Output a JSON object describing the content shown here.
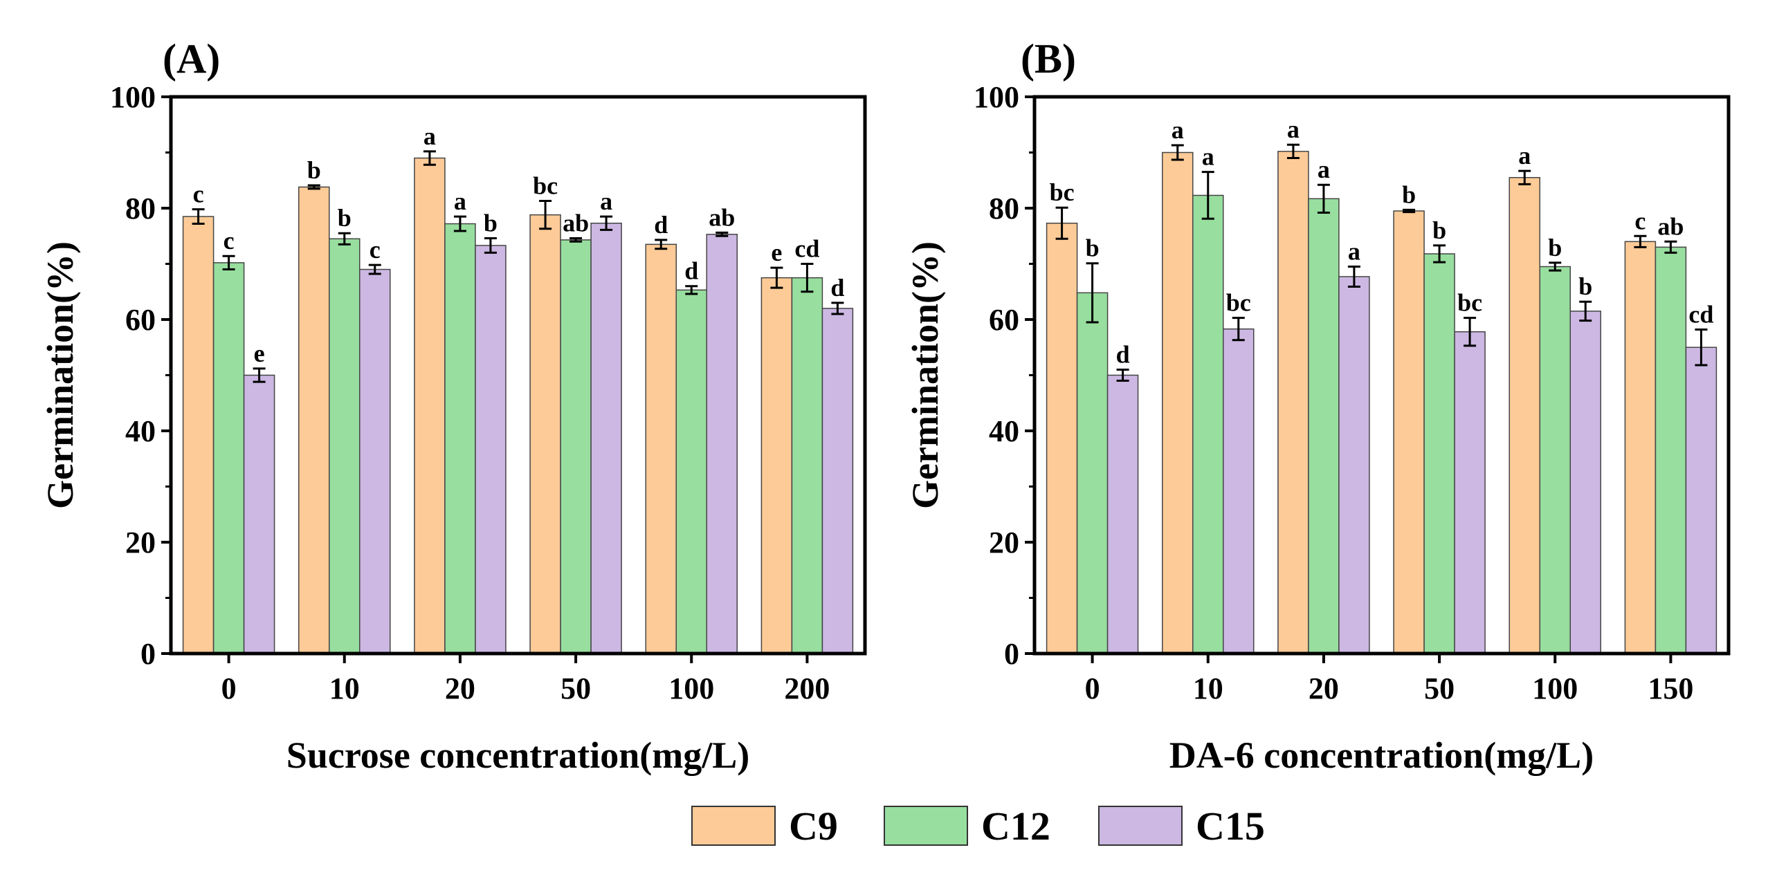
{
  "colors": {
    "C9": "#FDCB97",
    "C12": "#98DE9F",
    "C15": "#CCB8E3"
  },
  "legend": [
    {
      "name": "C9",
      "color": "#FDCB97"
    },
    {
      "name": "C12",
      "color": "#98DE9F"
    },
    {
      "name": "C15",
      "color": "#CCB8E3"
    }
  ],
  "chart_data": [
    {
      "panel_label": "(A)",
      "type": "bar",
      "categories": [
        "0",
        "10",
        "20",
        "50",
        "100",
        "200"
      ],
      "xlabel": "Sucrose concentration(mg/L)",
      "ylabel": "Germination(%)",
      "ylim": [
        0,
        100
      ],
      "yticks": [
        "0",
        "20",
        "40",
        "60",
        "80",
        "100"
      ],
      "series": [
        {
          "name": "C9",
          "values": [
            78.5,
            83.8,
            89.0,
            78.8,
            73.5,
            67.5
          ],
          "errors": [
            1.3,
            0.3,
            1.2,
            2.5,
            0.8,
            1.8
          ],
          "labels": [
            "c",
            "b",
            "a",
            "bc",
            "d",
            "e"
          ]
        },
        {
          "name": "C12",
          "values": [
            70.2,
            74.5,
            77.2,
            74.3,
            65.3,
            67.5
          ],
          "errors": [
            1.2,
            1.0,
            1.3,
            0.3,
            0.7,
            2.5
          ],
          "labels": [
            "c",
            "b",
            "a",
            "ab",
            "d",
            "cd"
          ]
        },
        {
          "name": "C15",
          "values": [
            50.0,
            69.0,
            73.3,
            77.3,
            75.3,
            62.0
          ],
          "errors": [
            1.2,
            0.8,
            1.3,
            1.2,
            0.3,
            1.0
          ],
          "labels": [
            "e",
            "c",
            "b",
            "a",
            "ab",
            "d"
          ]
        }
      ]
    },
    {
      "panel_label": "(B)",
      "type": "bar",
      "categories": [
        "0",
        "10",
        "20",
        "50",
        "100",
        "150"
      ],
      "xlabel": "DA-6 concentration(mg/L)",
      "ylabel": "Germination(%)",
      "ylim": [
        0,
        100
      ],
      "yticks": [
        "0",
        "20",
        "40",
        "60",
        "80",
        "100"
      ],
      "series": [
        {
          "name": "C9",
          "values": [
            77.3,
            90.0,
            90.2,
            79.5,
            85.5,
            74.0
          ],
          "errors": [
            2.8,
            1.3,
            1.2,
            0.2,
            1.2,
            1.0
          ],
          "labels": [
            "bc",
            "a",
            "a",
            "b",
            "a",
            "c"
          ]
        },
        {
          "name": "C12",
          "values": [
            64.8,
            82.3,
            81.7,
            71.8,
            69.5,
            73.0
          ],
          "errors": [
            5.3,
            4.2,
            2.5,
            1.5,
            0.7,
            1.0
          ],
          "labels": [
            "b",
            "a",
            "a",
            "b",
            "b",
            "ab"
          ]
        },
        {
          "name": "C15",
          "values": [
            50.0,
            58.3,
            67.7,
            57.8,
            61.5,
            55.0
          ],
          "errors": [
            1.0,
            2.0,
            1.8,
            2.5,
            1.7,
            3.2
          ],
          "labels": [
            "d",
            "bc",
            "a",
            "bc",
            "b",
            "cd"
          ]
        }
      ]
    }
  ]
}
